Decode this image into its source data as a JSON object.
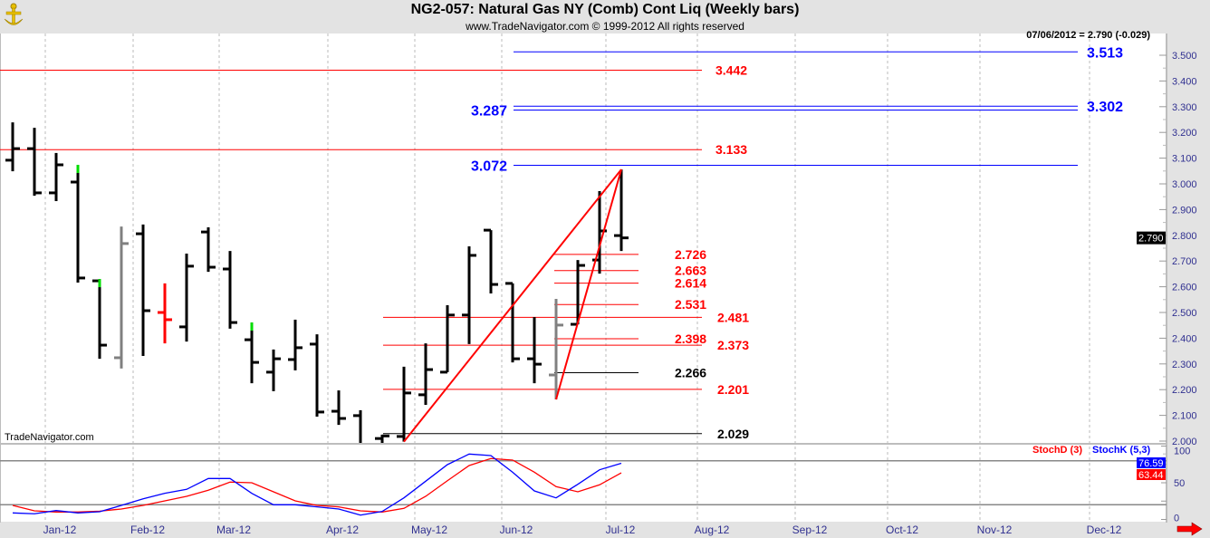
{
  "header": {
    "title": "NG2-057:  Natural Gas NY (Comb) Cont Liq  (Weekly bars)",
    "subtitle": "www.TradeNavigator.com © 1999-2012 All rights reserved",
    "logo": "trade-navigator-anchor-logo"
  },
  "info_readout": "07/06/2012 = 2.790 (-0.029)",
  "watermark": "TradeNavigator.com",
  "colors": {
    "up_bar": "#000000",
    "gray_bar": "#808080",
    "red_bar": "#ff0000",
    "green_tip": "#00dd00",
    "fib_red": "#ff0000",
    "fib_blue": "#0000ff",
    "black_level": "#000000",
    "stoch_d": "#ff0000",
    "stoch_k": "#0000ff"
  },
  "chart_data": [
    {
      "type": "ohlc",
      "title": "NG2-057:  Natural Gas NY (Comb) Cont Liq  (Weekly bars)",
      "x_tick_labels": [
        "Jan-12",
        "Feb-12",
        "Mar-12",
        "Apr-12",
        "May-12",
        "Jun-12",
        "Jul-12",
        "Aug-12",
        "Sep-12",
        "Oct-12",
        "Nov-12",
        "Dec-12"
      ],
      "y_tick_labels": [
        "2.000",
        "2.100",
        "2.200",
        "2.300",
        "2.400",
        "2.500",
        "2.600",
        "2.700",
        "2.800",
        "2.900",
        "3.000",
        "3.100",
        "3.200",
        "3.300",
        "3.400",
        "3.500"
      ],
      "ylim": [
        1.993,
        3.585
      ],
      "grid": "vertical dashed at month starts",
      "last_price": "2.790",
      "bars": [
        {
          "o": 3.092,
          "h": 3.239,
          "l": 3.049,
          "c": 3.137,
          "color": "black"
        },
        {
          "o": 3.137,
          "h": 3.218,
          "l": 2.954,
          "c": 2.965,
          "color": "black"
        },
        {
          "o": 2.965,
          "h": 3.12,
          "l": 2.933,
          "c": 3.074,
          "color": "black"
        },
        {
          "o": 3.007,
          "h": 3.074,
          "l": 2.616,
          "c": 2.634,
          "color": "black",
          "green_tip": true
        },
        {
          "o": 2.623,
          "h": 2.63,
          "l": 2.32,
          "c": 2.373,
          "color": "black",
          "green_tip": true
        },
        {
          "o": 2.324,
          "h": 2.834,
          "l": 2.282,
          "c": 2.768,
          "color": "gray"
        },
        {
          "o": 2.806,
          "h": 2.842,
          "l": 2.331,
          "c": 2.507,
          "color": "black"
        },
        {
          "o": 2.5,
          "h": 2.613,
          "l": 2.38,
          "c": 2.472,
          "color": "red"
        },
        {
          "o": 2.444,
          "h": 2.729,
          "l": 2.387,
          "c": 2.68,
          "color": "black"
        },
        {
          "o": 2.813,
          "h": 2.831,
          "l": 2.658,
          "c": 2.676,
          "color": "black"
        },
        {
          "o": 2.669,
          "h": 2.739,
          "l": 2.437,
          "c": 2.461,
          "color": "black"
        },
        {
          "o": 2.394,
          "h": 2.461,
          "l": 2.225,
          "c": 2.306,
          "color": "black",
          "green_tip": true
        },
        {
          "o": 2.268,
          "h": 2.356,
          "l": 2.194,
          "c": 2.32,
          "color": "black"
        },
        {
          "o": 2.317,
          "h": 2.472,
          "l": 2.275,
          "c": 2.363,
          "color": "black"
        },
        {
          "o": 2.377,
          "h": 2.415,
          "l": 2.095,
          "c": 2.113,
          "color": "black"
        },
        {
          "o": 2.116,
          "h": 2.197,
          "l": 2.063,
          "c": 2.088,
          "color": "black"
        },
        {
          "o": 2.099,
          "h": 2.12,
          "l": 1.97,
          "c": 1.985,
          "color": "black"
        },
        {
          "o": 2.01,
          "h": 2.025,
          "l": 1.98,
          "c": 2.02,
          "color": "black"
        },
        {
          "o": 2.018,
          "h": 2.289,
          "l": 1.998,
          "c": 2.187,
          "color": "black"
        },
        {
          "o": 2.18,
          "h": 2.38,
          "l": 2.141,
          "c": 2.278,
          "color": "black"
        },
        {
          "o": 2.268,
          "h": 2.528,
          "l": 2.268,
          "c": 2.49,
          "color": "black"
        },
        {
          "o": 2.49,
          "h": 2.757,
          "l": 2.377,
          "c": 2.722,
          "color": "black"
        },
        {
          "o": 2.82,
          "h": 2.82,
          "l": 2.574,
          "c": 2.609,
          "color": "black"
        },
        {
          "o": 2.613,
          "h": 2.613,
          "l": 2.306,
          "c": 2.32,
          "color": "black"
        },
        {
          "o": 2.32,
          "h": 2.482,
          "l": 2.225,
          "c": 2.299,
          "color": "black"
        },
        {
          "o": 2.257,
          "h": 2.553,
          "l": 2.162,
          "c": 2.451,
          "color": "gray"
        },
        {
          "o": 2.454,
          "h": 2.704,
          "l": 2.454,
          "c": 2.683,
          "color": "black"
        },
        {
          "o": 2.704,
          "h": 2.972,
          "l": 2.651,
          "c": 2.817,
          "color": "black"
        },
        {
          "o": 2.799,
          "h": 3.056,
          "l": 2.739,
          "c": 2.79,
          "color": "black"
        }
      ],
      "levels": [
        {
          "price": 3.513,
          "label": "3.513",
          "color": "blue",
          "group": "upper",
          "label_side": "right"
        },
        {
          "price": 3.442,
          "label": "3.442",
          "color": "red",
          "group": "wide",
          "label_side": "right"
        },
        {
          "price": 3.302,
          "label": "3.302",
          "color": "blue",
          "group": "upper",
          "label_side": "right"
        },
        {
          "price": 3.287,
          "label": "3.287",
          "color": "blue",
          "group": "upper",
          "label_side": "left"
        },
        {
          "price": 3.133,
          "label": "3.133",
          "color": "red",
          "group": "wide",
          "label_side": "right"
        },
        {
          "price": 3.072,
          "label": "3.072",
          "color": "blue",
          "group": "upper",
          "label_side": "left"
        },
        {
          "price": 2.726,
          "label": "2.726",
          "color": "red",
          "group": "short",
          "label_side": "right"
        },
        {
          "price": 2.663,
          "label": "2.663",
          "color": "red",
          "group": "short",
          "label_side": "right"
        },
        {
          "price": 2.614,
          "label": "2.614",
          "color": "red",
          "group": "short",
          "label_side": "right"
        },
        {
          "price": 2.531,
          "label": "2.531",
          "color": "red",
          "group": "short",
          "label_side": "right"
        },
        {
          "price": 2.481,
          "label": "2.481",
          "color": "red",
          "group": "mid",
          "label_side": "right"
        },
        {
          "price": 2.398,
          "label": "2.398",
          "color": "red",
          "group": "short",
          "label_side": "right"
        },
        {
          "price": 2.373,
          "label": "2.373",
          "color": "red",
          "group": "mid",
          "label_side": "right"
        },
        {
          "price": 2.266,
          "label": "2.266",
          "color": "black",
          "group": "short",
          "label_side": "right"
        },
        {
          "price": 2.201,
          "label": "2.201",
          "color": "red",
          "group": "mid",
          "label_side": "right"
        },
        {
          "price": 2.029,
          "label": "2.029",
          "color": "black",
          "group": "mid",
          "label_side": "right"
        }
      ],
      "trendlines": [
        {
          "from": {
            "bar": 18,
            "price": 1.998
          },
          "to": {
            "bar": 28,
            "price": 3.056
          },
          "color": "red"
        },
        {
          "from": {
            "bar": 25,
            "price": 2.162
          },
          "to": {
            "bar": 28,
            "price": 3.056
          },
          "color": "red"
        }
      ]
    },
    {
      "type": "line",
      "title": "",
      "ylim": [
        0,
        100
      ],
      "y_tick_labels": [
        "0",
        "50",
        "100"
      ],
      "reference_lines": [
        20,
        80
      ],
      "series": [
        {
          "name": "StochD (3)",
          "color": "#ff0000",
          "last_label": "63.44",
          "values": [
            19.1,
            11.7,
            10.1,
            10.1,
            11.3,
            14.2,
            19.1,
            25.3,
            31.5,
            39.8,
            50.9,
            50.0,
            37.7,
            25.3,
            19.1,
            17.1,
            11.7,
            10.1,
            15.1,
            31.5,
            52.8,
            73.5,
            83.0,
            80.9,
            64.4,
            44.7,
            37.7,
            47.2,
            63.44
          ]
        },
        {
          "name": "StochK (5,3)",
          "color": "#0000ff",
          "last_label": "76.59",
          "values": [
            8.9,
            7.7,
            12.1,
            8.9,
            10.5,
            19.1,
            28.1,
            35.6,
            41.0,
            55.8,
            55.8,
            35.6,
            20.0,
            20.0,
            17.1,
            14.2,
            5.9,
            10.9,
            29.4,
            52.1,
            74.7,
            89.1,
            87.0,
            64.4,
            38.9,
            29.4,
            47.9,
            67.7,
            76.59
          ]
        }
      ]
    }
  ]
}
